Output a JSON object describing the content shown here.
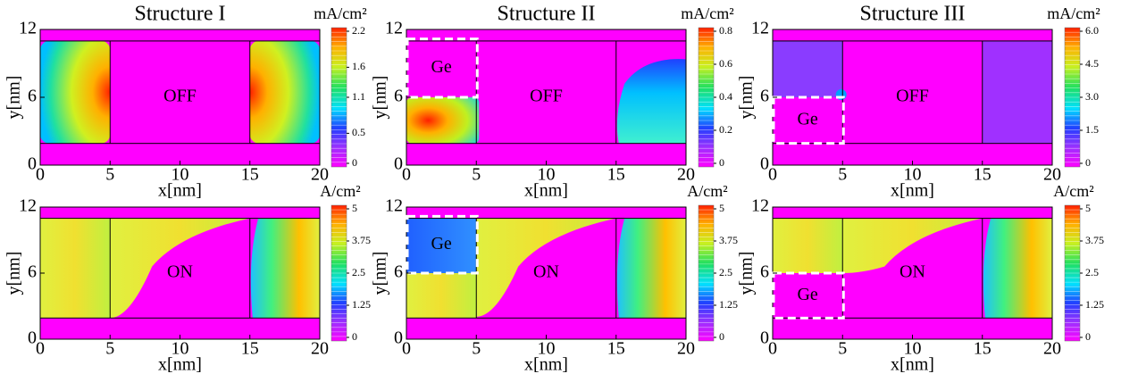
{
  "chart_data": [
    {
      "type": "contour",
      "title": "Structure I",
      "state": "OFF",
      "xlabel": "x[nm]",
      "ylabel": "y[nm]",
      "xlim": [
        0,
        20
      ],
      "ylim": [
        0,
        12
      ],
      "xticks": [
        0,
        5,
        10,
        15,
        20
      ],
      "yticks": [
        0,
        6,
        12
      ],
      "colorbar_label": "mA/cm²",
      "clim": [
        0,
        2.2
      ],
      "cticks": [
        0,
        0.5,
        1.1,
        1.6,
        2.2
      ]
    },
    {
      "type": "contour",
      "title": "Structure II",
      "state": "OFF",
      "annotation": "Ge",
      "xlabel": "x[nm]",
      "ylabel": "y[nm]",
      "xlim": [
        0,
        20
      ],
      "ylim": [
        0,
        12
      ],
      "xticks": [
        0,
        5,
        10,
        15,
        20
      ],
      "yticks": [
        0,
        6,
        12
      ],
      "colorbar_label": "mA/cm²",
      "clim": [
        0,
        0.8
      ],
      "cticks": [
        0,
        0.2,
        0.4,
        0.6,
        0.8
      ]
    },
    {
      "type": "contour",
      "title": "Structure III",
      "state": "OFF",
      "annotation": "Ge",
      "xlabel": "x[nm]",
      "ylabel": "y[nm]",
      "xlim": [
        0,
        20
      ],
      "ylim": [
        0,
        12
      ],
      "xticks": [
        0,
        5,
        10,
        15,
        20
      ],
      "yticks": [
        0,
        6,
        12
      ],
      "colorbar_label": "mA/cm²",
      "clim": [
        0,
        6
      ],
      "cticks": [
        0,
        1.5,
        {
          "value": 3,
          "label": "3.0"
        },
        4.5,
        {
          "value": 6,
          "label": "6.0"
        }
      ]
    },
    {
      "type": "contour",
      "state": "ON",
      "xlabel": "x[nm]",
      "ylabel": "y[nm]",
      "xlim": [
        0,
        20
      ],
      "ylim": [
        0,
        12
      ],
      "xticks": [
        0,
        5,
        10,
        15,
        20
      ],
      "yticks": [
        0,
        6,
        12
      ],
      "colorbar_label": "A/cm²",
      "clim": [
        0,
        5
      ],
      "cticks": [
        0,
        1.25,
        2.5,
        3.75,
        5
      ]
    },
    {
      "type": "contour",
      "state": "ON",
      "annotation": "Ge",
      "xlabel": "x[nm]",
      "ylabel": "y[nm]",
      "xlim": [
        0,
        20
      ],
      "ylim": [
        0,
        12
      ],
      "xticks": [
        0,
        5,
        10,
        15,
        20
      ],
      "yticks": [
        0,
        6,
        12
      ],
      "colorbar_label": "A/cm²",
      "clim": [
        0,
        5
      ],
      "cticks": [
        0,
        1.25,
        2.5,
        3.75,
        5
      ]
    },
    {
      "type": "contour",
      "state": "ON",
      "annotation": "Ge",
      "xlabel": "x[nm]",
      "ylabel": "y[nm]",
      "xlim": [
        0,
        20
      ],
      "ylim": [
        0,
        12
      ],
      "xticks": [
        0,
        5,
        10,
        15,
        20
      ],
      "yticks": [
        0,
        6,
        12
      ],
      "colorbar_label": "A/cm²",
      "clim": [
        0,
        5
      ],
      "cticks": [
        0,
        1.25,
        2.5,
        3.75,
        5
      ]
    }
  ]
}
